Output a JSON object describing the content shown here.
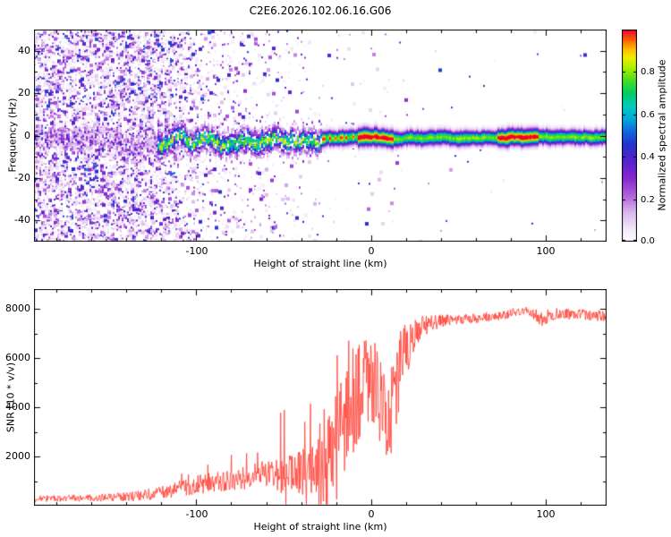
{
  "figure": {
    "title": "C2E6.2026.102.06.16.G06"
  },
  "chart_data": [
    {
      "type": "heatmap",
      "title": "C2E6.2026.102.06.16.G06",
      "xlabel": "Height of straight line (km)",
      "ylabel": "Frequency (Hz)",
      "xlim": [
        -193,
        135
      ],
      "ylim": [
        -50,
        50
      ],
      "xticks": [
        -100,
        0,
        100
      ],
      "xtick_labels": [
        "-100",
        "0",
        "100"
      ],
      "yticks": [
        40,
        20,
        0,
        -20,
        -40
      ],
      "ytick_labels": [
        "40",
        "20",
        "0",
        "-20",
        "-40"
      ],
      "grid": false,
      "colorbar": {
        "label": "Normalized spectral amplitude",
        "tick_values": [
          0,
          0.2,
          0.4,
          0.6,
          0.8
        ],
        "tick_labels": [
          "0.0",
          "0.2",
          "0.4",
          "0.6",
          "0.8"
        ],
        "range": [
          0,
          1
        ],
        "colormap": [
          [
            0.0,
            "#ffffff"
          ],
          [
            0.06,
            "#f3e8f8"
          ],
          [
            0.14,
            "#dbb8ee"
          ],
          [
            0.22,
            "#b060dd"
          ],
          [
            0.3,
            "#8828cc"
          ],
          [
            0.38,
            "#5522cc"
          ],
          [
            0.46,
            "#2233cc"
          ],
          [
            0.52,
            "#1166dd"
          ],
          [
            0.58,
            "#00aadd"
          ],
          [
            0.64,
            "#00ccbb"
          ],
          [
            0.7,
            "#00cc66"
          ],
          [
            0.76,
            "#44dd22"
          ],
          [
            0.82,
            "#aaee00"
          ],
          [
            0.87,
            "#eeee00"
          ],
          [
            0.91,
            "#ffbb00"
          ],
          [
            0.95,
            "#ff6600"
          ],
          [
            1.0,
            "#ee0033"
          ]
        ]
      },
      "background_noise": {
        "dense_speckle_km": [
          -193,
          -125
        ],
        "fading_speckle_km": [
          -125,
          -30
        ],
        "description": "diffuse low-amplitude speckle (0.05-0.5) across all frequencies, dense left of -125 km, fading toward -30 km"
      },
      "band": {
        "center_hz": -1,
        "noisy_segment_km": [
          -123,
          -28
        ],
        "noisy_amplitude": [
          0.3,
          0.8
        ],
        "smooth_segment_km": [
          -28,
          135
        ],
        "typical_amplitude": 0.8,
        "peak_amplitude": 1.0,
        "high_amplitude_km": [
          [
            -8,
            13
          ],
          [
            72,
            96
          ]
        ],
        "halo_halfwidth_hz": 7,
        "core_sigma_hz": 2.1,
        "description": "echo trace near 0 Hz: wandering noisy cyan/green band from -123 to -28 km, tight smooth band with red cores near 0-10 km and 75-95 km"
      }
    },
    {
      "type": "line",
      "series_name": "SNR",
      "xlabel": "Height of straight line (km)",
      "ylabel": "SNR (10 * v/v)",
      "xlim": [
        -193,
        135
      ],
      "ylim": [
        0,
        8800
      ],
      "xticks": [
        -100,
        0,
        100
      ],
      "xtick_labels": [
        "-100",
        "0",
        "100"
      ],
      "yticks": [
        2000,
        4000,
        6000,
        8000
      ],
      "ytick_labels": [
        "2000",
        "4000",
        "6000",
        "8000"
      ],
      "grid": false,
      "color": "#ff3b30",
      "envelope_columns": [
        "height_km",
        "snr_base",
        "snr_noise_halfrange",
        "spike_probability",
        "spike_max_added"
      ],
      "envelope": [
        [
          -193,
          280,
          130,
          0,
          0
        ],
        [
          -160,
          310,
          140,
          0,
          0
        ],
        [
          -135,
          380,
          200,
          0.01,
          400
        ],
        [
          -115,
          600,
          300,
          0.03,
          700
        ],
        [
          -100,
          850,
          380,
          0.04,
          900
        ],
        [
          -85,
          1000,
          420,
          0.05,
          1000
        ],
        [
          -70,
          1150,
          500,
          0.05,
          1200
        ],
        [
          -58,
          1300,
          600,
          0.07,
          1600
        ],
        [
          -48,
          1250,
          750,
          0.09,
          3500
        ],
        [
          -40,
          1350,
          900,
          0.12,
          5500
        ],
        [
          -33,
          1500,
          1100,
          0.15,
          5800
        ],
        [
          -27,
          1800,
          1400,
          0.17,
          5200
        ],
        [
          -21,
          2600,
          1800,
          0.18,
          4200
        ],
        [
          -14,
          3600,
          2200,
          0.13,
          3200
        ],
        [
          -7,
          4600,
          2000,
          0.1,
          2400
        ],
        [
          -1,
          5200,
          1800,
          0.08,
          2000
        ],
        [
          4,
          4700,
          2000,
          0.08,
          1800
        ],
        [
          9,
          3100,
          2300,
          0.05,
          1500
        ],
        [
          14,
          5000,
          1900,
          0.07,
          1400
        ],
        [
          19,
          6200,
          1300,
          0.05,
          900
        ],
        [
          25,
          7000,
          700,
          0,
          0
        ],
        [
          33,
          7400,
          350,
          0,
          0
        ],
        [
          45,
          7550,
          220,
          0,
          0
        ],
        [
          60,
          7600,
          200,
          0,
          0
        ],
        [
          75,
          7750,
          200,
          0,
          0
        ],
        [
          90,
          7950,
          170,
          0,
          0
        ],
        [
          98,
          7600,
          330,
          0,
          0
        ],
        [
          106,
          7800,
          230,
          0,
          0
        ],
        [
          120,
          7780,
          220,
          0,
          0
        ],
        [
          135,
          7700,
          220,
          0,
          0
        ]
      ]
    }
  ]
}
